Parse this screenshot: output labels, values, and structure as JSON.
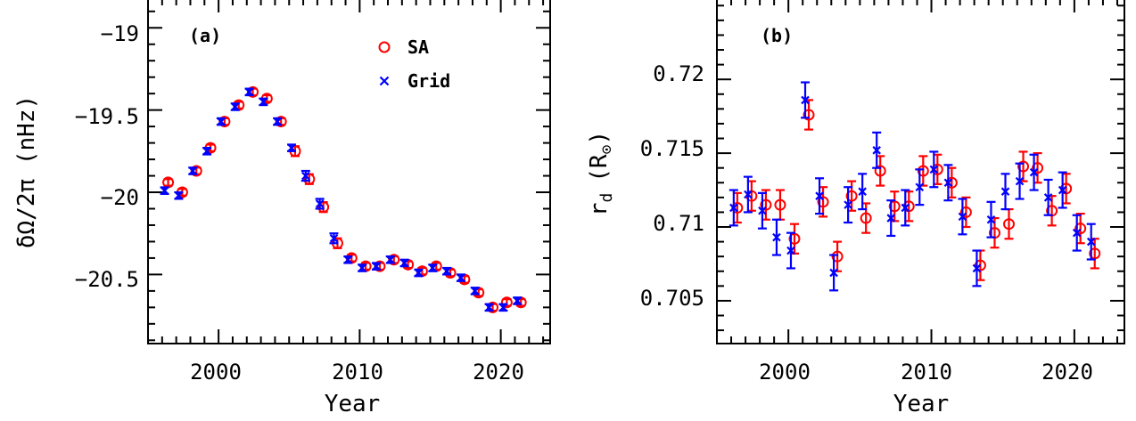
{
  "chart_data": [
    {
      "type": "scatter",
      "panel_label": "(a)",
      "xlabel": "Year",
      "ylabel": "δΩ/2π (nHz)",
      "xlim": [
        1995,
        2023.5
      ],
      "ylim": [
        -20.92,
        -18.82
      ],
      "xticks": [
        2000,
        2010,
        2020
      ],
      "xtick_labels": [
        "2000",
        "2010",
        "2020"
      ],
      "yticks": [
        -19,
        -19.5,
        -20,
        -20.5
      ],
      "ytick_labels": [
        "−19",
        "−19.5",
        "−20",
        "−20.5"
      ],
      "legend_position": "top-right",
      "series": [
        {
          "name": "SA",
          "marker": "circle",
          "color": "#ff0000",
          "x": [
            1996.3,
            1997.3,
            1998.3,
            1999.3,
            2000.3,
            2001.3,
            2002.3,
            2003.3,
            2004.3,
            2005.3,
            2006.3,
            2007.3,
            2008.3,
            2009.3,
            2010.3,
            2011.3,
            2012.3,
            2013.3,
            2014.3,
            2015.3,
            2016.3,
            2017.3,
            2018.3,
            2019.3,
            2020.3,
            2021.3
          ],
          "y": [
            -19.94,
            -20.0,
            -19.87,
            -19.73,
            -19.57,
            -19.47,
            -19.39,
            -19.43,
            -19.57,
            -19.75,
            -19.92,
            -20.09,
            -20.31,
            -20.4,
            -20.45,
            -20.45,
            -20.41,
            -20.44,
            -20.48,
            -20.45,
            -20.49,
            -20.53,
            -20.61,
            -20.7,
            -20.67,
            -20.67
          ],
          "yerr": [
            0.02,
            0.02,
            0.02,
            0.02,
            0.02,
            0.02,
            0.02,
            0.02,
            0.02,
            0.03,
            0.03,
            0.03,
            0.03,
            0.02,
            0.02,
            0.02,
            0.02,
            0.02,
            0.02,
            0.02,
            0.02,
            0.02,
            0.02,
            0.02,
            0.02,
            0.02
          ]
        },
        {
          "name": "Grid",
          "marker": "cross",
          "color": "#0000ff",
          "x": [
            1996.3,
            1997.3,
            1998.3,
            1999.3,
            2000.3,
            2001.3,
            2002.3,
            2003.3,
            2004.3,
            2005.3,
            2006.3,
            2007.3,
            2008.3,
            2009.3,
            2010.3,
            2011.3,
            2012.3,
            2013.3,
            2014.3,
            2015.3,
            2016.3,
            2017.3,
            2018.3,
            2019.3,
            2020.3,
            2021.3
          ],
          "y": [
            -19.99,
            -20.02,
            -19.87,
            -19.75,
            -19.57,
            -19.48,
            -19.39,
            -19.45,
            -19.57,
            -19.73,
            -19.9,
            -20.07,
            -20.28,
            -20.41,
            -20.46,
            -20.45,
            -20.41,
            -20.43,
            -20.49,
            -20.46,
            -20.48,
            -20.52,
            -20.6,
            -20.7,
            -20.7,
            -20.66
          ],
          "yerr": [
            0.02,
            0.02,
            0.02,
            0.02,
            0.02,
            0.02,
            0.02,
            0.02,
            0.02,
            0.02,
            0.03,
            0.03,
            0.03,
            0.02,
            0.02,
            0.02,
            0.02,
            0.02,
            0.02,
            0.02,
            0.02,
            0.02,
            0.02,
            0.02,
            0.02,
            0.02
          ]
        }
      ]
    },
    {
      "type": "scatter",
      "panel_label": "(b)",
      "xlabel": "Year",
      "ylabel": "r",
      "ylabel_subscript": "d",
      "ylabel_unit": "(R",
      "ylabel_unit_subscript": "⊙",
      "ylabel_close": ")",
      "xlim": [
        1995,
        2023.5
      ],
      "ylim": [
        0.7021,
        0.7255
      ],
      "xticks": [
        2000,
        2010,
        2020
      ],
      "xtick_labels": [
        "2000",
        "2010",
        "2020"
      ],
      "yticks": [
        0.72,
        0.715,
        0.71,
        0.705
      ],
      "ytick_labels": [
        "0.72",
        "0.715",
        "0.71",
        "0.705"
      ],
      "series": [
        {
          "name": "SA",
          "marker": "circle",
          "color": "#ff0000",
          "x": [
            1996.3,
            1997.3,
            1998.3,
            1999.3,
            2000.3,
            2001.3,
            2002.3,
            2003.3,
            2004.3,
            2005.3,
            2006.3,
            2007.3,
            2008.3,
            2009.3,
            2010.3,
            2011.3,
            2012.3,
            2013.3,
            2014.3,
            2015.3,
            2016.3,
            2017.3,
            2018.3,
            2019.3,
            2020.3,
            2021.3
          ],
          "y": [
            0.7113,
            0.7121,
            0.7115,
            0.7115,
            0.7092,
            0.7176,
            0.7117,
            0.708,
            0.7121,
            0.7106,
            0.7138,
            0.7114,
            0.7114,
            0.7138,
            0.7139,
            0.713,
            0.711,
            0.7074,
            0.7096,
            0.7102,
            0.7141,
            0.714,
            0.7111,
            0.7126,
            0.7099,
            0.7082
          ],
          "yerr": [
            0.001,
            0.001,
            0.001,
            0.001,
            0.001,
            0.001,
            0.001,
            0.001,
            0.001,
            0.001,
            0.001,
            0.001,
            0.001,
            0.001,
            0.001,
            0.001,
            0.001,
            0.001,
            0.001,
            0.001,
            0.001,
            0.001,
            0.001,
            0.001,
            0.001,
            0.001
          ]
        },
        {
          "name": "Grid",
          "marker": "cross",
          "color": "#0000ff",
          "x": [
            1996.3,
            1997.3,
            1998.3,
            1999.3,
            2000.3,
            2001.3,
            2002.3,
            2003.3,
            2004.3,
            2005.3,
            2006.3,
            2007.3,
            2008.3,
            2009.3,
            2010.3,
            2011.3,
            2012.3,
            2013.3,
            2014.3,
            2015.3,
            2016.3,
            2017.3,
            2018.3,
            2019.3,
            2020.3,
            2021.3
          ],
          "y": [
            0.7113,
            0.7122,
            0.7111,
            0.7093,
            0.7084,
            0.7186,
            0.7121,
            0.7069,
            0.7115,
            0.7124,
            0.7152,
            0.7106,
            0.7113,
            0.7127,
            0.7139,
            0.713,
            0.7107,
            0.7072,
            0.7105,
            0.7124,
            0.7131,
            0.7137,
            0.712,
            0.7125,
            0.7096,
            0.709
          ],
          "yerr": [
            0.0012,
            0.0012,
            0.0012,
            0.0012,
            0.0012,
            0.0012,
            0.0012,
            0.0012,
            0.0012,
            0.0012,
            0.0012,
            0.0012,
            0.0012,
            0.0012,
            0.0012,
            0.0012,
            0.0012,
            0.0012,
            0.0012,
            0.0012,
            0.0012,
            0.0012,
            0.0012,
            0.0012,
            0.0012,
            0.0012
          ]
        }
      ]
    }
  ]
}
